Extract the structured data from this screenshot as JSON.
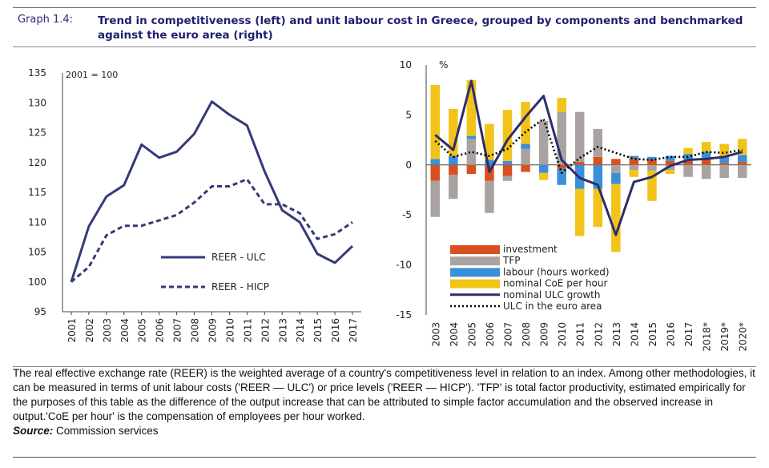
{
  "header": {
    "graph_label": "Graph 1.4:",
    "title": "Trend in competitiveness (left) and unit labour cost in Greece, grouped by components and benchmarked against the euro area (right)"
  },
  "chart_data": [
    {
      "type": "line",
      "annotation": "2001 = 100",
      "x": [
        "2001",
        "2002",
        "2003",
        "2004",
        "2005",
        "2006",
        "2007",
        "2008",
        "2009",
        "2010",
        "2011",
        "2012",
        "2013",
        "2014",
        "2015",
        "2016",
        "2017"
      ],
      "ylim": [
        95,
        135
      ],
      "yticks": [
        "95",
        "100",
        "105",
        "110",
        "115",
        "120",
        "125",
        "130",
        "135"
      ],
      "series": [
        {
          "name": "REER - ULC",
          "style": "solid",
          "color": "#343a7a",
          "values": [
            100,
            109.3,
            114.3,
            116.2,
            123,
            120.8,
            121.8,
            124.8,
            130.2,
            128,
            126.2,
            118.5,
            112,
            110,
            104.7,
            103.2,
            106
          ]
        },
        {
          "name": "REER - HICP",
          "style": "dotted",
          "color": "#343a7a",
          "values": [
            100,
            102.5,
            107.8,
            109.4,
            109.4,
            110.3,
            111.2,
            113.3,
            116,
            116,
            117.2,
            113,
            113,
            111.5,
            107.2,
            108,
            110
          ]
        }
      ]
    },
    {
      "type": "bar",
      "ylabel": "%",
      "ylim": [
        -15,
        10
      ],
      "yticks": [
        "10",
        "5",
        "0",
        "-5",
        "-10",
        "-15"
      ],
      "categories": [
        "2003",
        "2004",
        "2005",
        "2006",
        "2007",
        "2008",
        "2009",
        "2010",
        "2011",
        "2012",
        "2013",
        "2014",
        "2015",
        "2016",
        "2017",
        "2018*",
        "2019*",
        "2020*"
      ],
      "series": [
        {
          "name": "investment",
          "color": "#d9501e",
          "values": [
            -1.6,
            -1,
            -0.9,
            -1.6,
            -1.1,
            -0.7,
            0,
            -0.4,
            0.3,
            0.8,
            0.6,
            0.6,
            0.5,
            0.4,
            0.4,
            0.6,
            0.2,
            0.3
          ]
        },
        {
          "name": "TFP",
          "color": "#a8a3a0",
          "values": [
            -3.6,
            -2.4,
            2.6,
            -3.2,
            -0.5,
            1.6,
            4.4,
            5.3,
            5,
            2.8,
            -0.8,
            -0.5,
            -0.6,
            -0.5,
            -1.2,
            -1.4,
            -1.3,
            -1.3
          ]
        },
        {
          "name": "labour (hours worked)",
          "color": "#3a8fd8",
          "values": [
            0.6,
            0.9,
            0.3,
            0.5,
            0.4,
            0.5,
            -0.8,
            -1.6,
            -2.4,
            -2.4,
            -1.1,
            0.3,
            0.3,
            0.5,
            0.7,
            0.7,
            0.7,
            0.7
          ]
        },
        {
          "name": "nominal CoE per hour",
          "color": "#f2c318",
          "values": [
            7.4,
            4.7,
            5.6,
            3.6,
            5.1,
            4.2,
            -0.7,
            1.4,
            -4.7,
            -3.8,
            -6.8,
            -0.7,
            -3,
            -0.4,
            0.6,
            1,
            1.2,
            1.6
          ]
        }
      ],
      "lines": [
        {
          "name": "nominal ULC growth",
          "style": "solid",
          "color": "#2d2d6a",
          "values": [
            3,
            1.5,
            8.4,
            -0.7,
            2.5,
            4.8,
            6.9,
            0.5,
            -1.3,
            -2,
            -7,
            -1.7,
            -1.2,
            -0.1,
            0.5,
            0.6,
            0.8,
            1.3
          ]
        },
        {
          "name": "ULC in the euro area",
          "style": "dotted",
          "color": "#000000",
          "values": [
            2.4,
            0.8,
            1.3,
            0.9,
            1.6,
            3.3,
            4.6,
            -0.8,
            0.7,
            1.8,
            1.2,
            0.6,
            0.5,
            0.8,
            0.8,
            1.3,
            1.2,
            1.5
          ]
        }
      ]
    }
  ],
  "footnote": {
    "text": "The real effective exchange rate (REER) is the weighted average of a country's competitiveness level in relation to an index. Among other methodologies, it can be measured in terms of unit labour costs ('REER — ULC') or price levels ('REER — HICP'). 'TFP' is total factor productivity, estimated empirically  for the purposes of this table as the difference of the output increase that can be attributed to simple factor accumulation and the observed increase in output.'CoE per hour' is the compensation of employees per hour worked.",
    "source_label": "Source:",
    "source_text": " Commission services"
  }
}
